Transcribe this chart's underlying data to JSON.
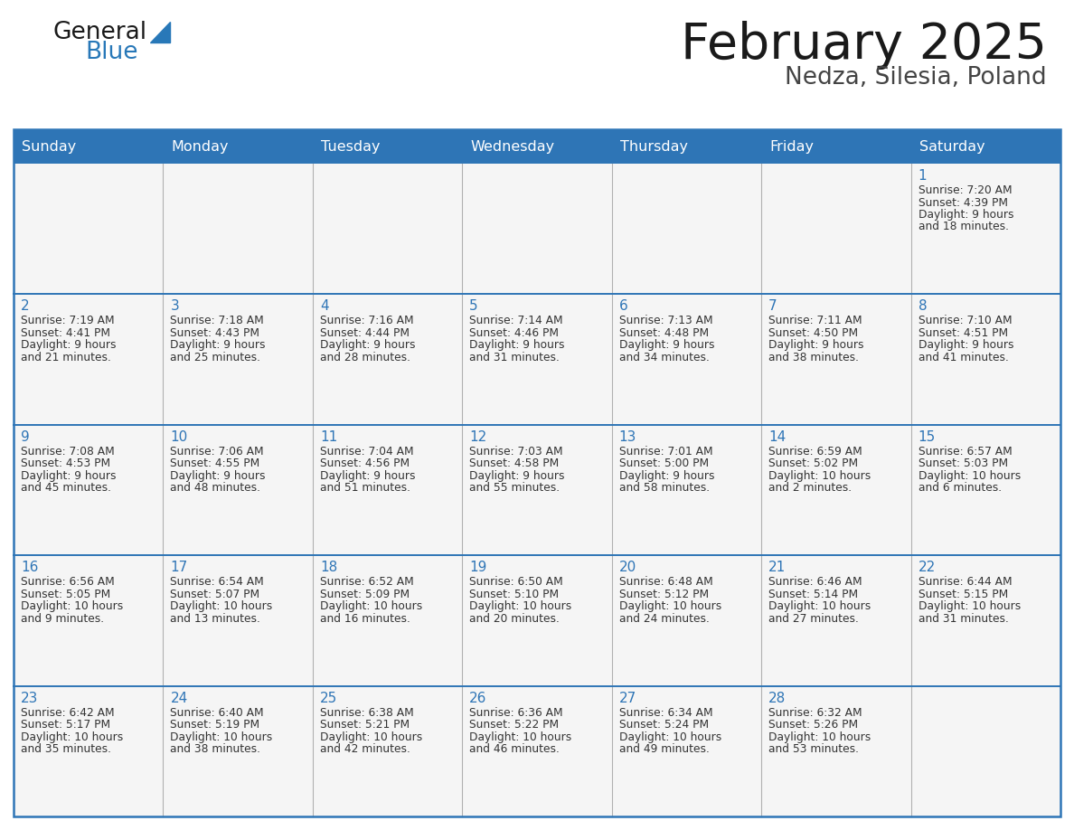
{
  "title": "February 2025",
  "subtitle": "Nedza, Silesia, Poland",
  "header_bg": "#2e75b6",
  "header_fg": "#ffffff",
  "border_color": "#2e75b6",
  "row_divider_color": "#2e75b6",
  "col_divider_color": "#b0b0b0",
  "cell_bg": "#f5f5f5",
  "day_number_color": "#2e75b6",
  "cell_text_color": "#333333",
  "bg_color": "#ffffff",
  "logo_text_color": "#1a1a1a",
  "logo_blue_color": "#2878b8",
  "title_color": "#1a1a1a",
  "subtitle_color": "#444444",
  "days_of_week": [
    "Sunday",
    "Monday",
    "Tuesday",
    "Wednesday",
    "Thursday",
    "Friday",
    "Saturday"
  ],
  "calendar_data": [
    [
      null,
      null,
      null,
      null,
      null,
      null,
      {
        "day": "1",
        "sunrise": "7:20 AM",
        "sunset": "4:39 PM",
        "daylight": "9 hours",
        "daylight2": "and 18 minutes."
      }
    ],
    [
      {
        "day": "2",
        "sunrise": "7:19 AM",
        "sunset": "4:41 PM",
        "daylight": "9 hours",
        "daylight2": "and 21 minutes."
      },
      {
        "day": "3",
        "sunrise": "7:18 AM",
        "sunset": "4:43 PM",
        "daylight": "9 hours",
        "daylight2": "and 25 minutes."
      },
      {
        "day": "4",
        "sunrise": "7:16 AM",
        "sunset": "4:44 PM",
        "daylight": "9 hours",
        "daylight2": "and 28 minutes."
      },
      {
        "day": "5",
        "sunrise": "7:14 AM",
        "sunset": "4:46 PM",
        "daylight": "9 hours",
        "daylight2": "and 31 minutes."
      },
      {
        "day": "6",
        "sunrise": "7:13 AM",
        "sunset": "4:48 PM",
        "daylight": "9 hours",
        "daylight2": "and 34 minutes."
      },
      {
        "day": "7",
        "sunrise": "7:11 AM",
        "sunset": "4:50 PM",
        "daylight": "9 hours",
        "daylight2": "and 38 minutes."
      },
      {
        "day": "8",
        "sunrise": "7:10 AM",
        "sunset": "4:51 PM",
        "daylight": "9 hours",
        "daylight2": "and 41 minutes."
      }
    ],
    [
      {
        "day": "9",
        "sunrise": "7:08 AM",
        "sunset": "4:53 PM",
        "daylight": "9 hours",
        "daylight2": "and 45 minutes."
      },
      {
        "day": "10",
        "sunrise": "7:06 AM",
        "sunset": "4:55 PM",
        "daylight": "9 hours",
        "daylight2": "and 48 minutes."
      },
      {
        "day": "11",
        "sunrise": "7:04 AM",
        "sunset": "4:56 PM",
        "daylight": "9 hours",
        "daylight2": "and 51 minutes."
      },
      {
        "day": "12",
        "sunrise": "7:03 AM",
        "sunset": "4:58 PM",
        "daylight": "9 hours",
        "daylight2": "and 55 minutes."
      },
      {
        "day": "13",
        "sunrise": "7:01 AM",
        "sunset": "5:00 PM",
        "daylight": "9 hours",
        "daylight2": "and 58 minutes."
      },
      {
        "day": "14",
        "sunrise": "6:59 AM",
        "sunset": "5:02 PM",
        "daylight": "10 hours",
        "daylight2": "and 2 minutes."
      },
      {
        "day": "15",
        "sunrise": "6:57 AM",
        "sunset": "5:03 PM",
        "daylight": "10 hours",
        "daylight2": "and 6 minutes."
      }
    ],
    [
      {
        "day": "16",
        "sunrise": "6:56 AM",
        "sunset": "5:05 PM",
        "daylight": "10 hours",
        "daylight2": "and 9 minutes."
      },
      {
        "day": "17",
        "sunrise": "6:54 AM",
        "sunset": "5:07 PM",
        "daylight": "10 hours",
        "daylight2": "and 13 minutes."
      },
      {
        "day": "18",
        "sunrise": "6:52 AM",
        "sunset": "5:09 PM",
        "daylight": "10 hours",
        "daylight2": "and 16 minutes."
      },
      {
        "day": "19",
        "sunrise": "6:50 AM",
        "sunset": "5:10 PM",
        "daylight": "10 hours",
        "daylight2": "and 20 minutes."
      },
      {
        "day": "20",
        "sunrise": "6:48 AM",
        "sunset": "5:12 PM",
        "daylight": "10 hours",
        "daylight2": "and 24 minutes."
      },
      {
        "day": "21",
        "sunrise": "6:46 AM",
        "sunset": "5:14 PM",
        "daylight": "10 hours",
        "daylight2": "and 27 minutes."
      },
      {
        "day": "22",
        "sunrise": "6:44 AM",
        "sunset": "5:15 PM",
        "daylight": "10 hours",
        "daylight2": "and 31 minutes."
      }
    ],
    [
      {
        "day": "23",
        "sunrise": "6:42 AM",
        "sunset": "5:17 PM",
        "daylight": "10 hours",
        "daylight2": "and 35 minutes."
      },
      {
        "day": "24",
        "sunrise": "6:40 AM",
        "sunset": "5:19 PM",
        "daylight": "10 hours",
        "daylight2": "and 38 minutes."
      },
      {
        "day": "25",
        "sunrise": "6:38 AM",
        "sunset": "5:21 PM",
        "daylight": "10 hours",
        "daylight2": "and 42 minutes."
      },
      {
        "day": "26",
        "sunrise": "6:36 AM",
        "sunset": "5:22 PM",
        "daylight": "10 hours",
        "daylight2": "and 46 minutes."
      },
      {
        "day": "27",
        "sunrise": "6:34 AM",
        "sunset": "5:24 PM",
        "daylight": "10 hours",
        "daylight2": "and 49 minutes."
      },
      {
        "day": "28",
        "sunrise": "6:32 AM",
        "sunset": "5:26 PM",
        "daylight": "10 hours",
        "daylight2": "and 53 minutes."
      },
      null
    ]
  ]
}
